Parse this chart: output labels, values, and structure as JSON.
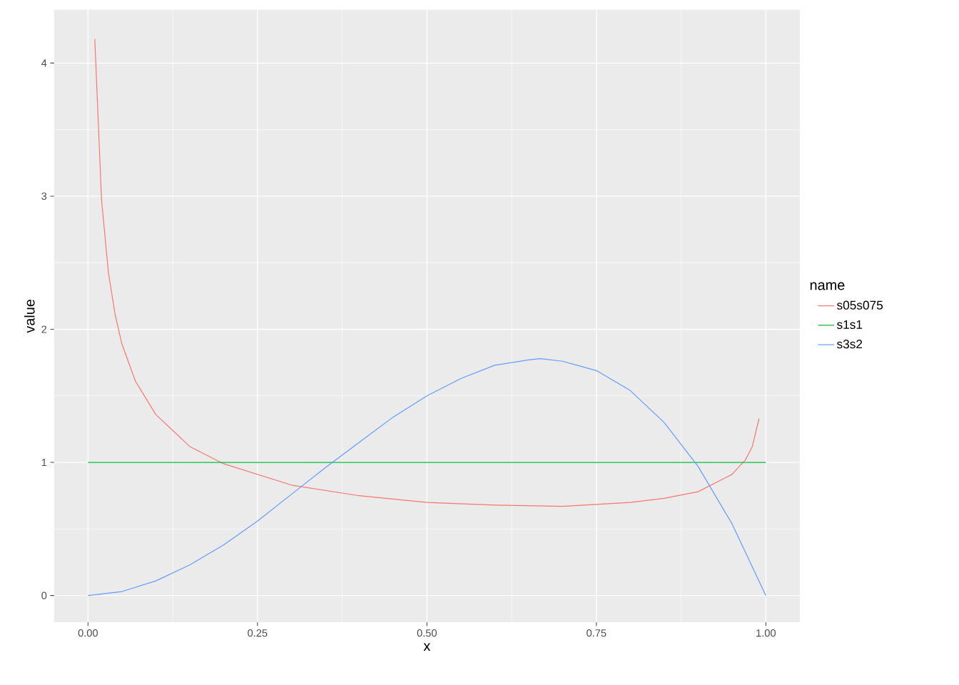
{
  "chart_data": {
    "type": "line",
    "xlabel": "x",
    "ylabel": "value",
    "legend_title": "name",
    "legend": "right",
    "grid": true,
    "xlim": [
      -0.05,
      1.05
    ],
    "ylim": [
      -0.2,
      4.4
    ],
    "xticks": [
      {
        "value": 0,
        "label": "0.00"
      },
      {
        "value": 0.25,
        "label": "0.25"
      },
      {
        "value": 0.5,
        "label": "0.50"
      },
      {
        "value": 0.75,
        "label": "0.75"
      },
      {
        "value": 1,
        "label": "1.00"
      }
    ],
    "yticks": [
      0,
      1,
      2,
      3,
      4
    ],
    "series": [
      {
        "name": "s05s075",
        "color": "#f8766d",
        "x": [
          0.01,
          0.02,
          0.03,
          0.04,
          0.05,
          0.07,
          0.1,
          0.15,
          0.2,
          0.3,
          0.4,
          0.5,
          0.6,
          0.7,
          0.8,
          0.85,
          0.9,
          0.95,
          0.97,
          0.98,
          0.99
        ],
        "values": [
          4.18,
          2.97,
          2.43,
          2.11,
          1.89,
          1.61,
          1.36,
          1.12,
          0.99,
          0.83,
          0.75,
          0.7,
          0.68,
          0.67,
          0.7,
          0.73,
          0.78,
          0.91,
          1.02,
          1.12,
          1.33
        ]
      },
      {
        "name": "s1s1",
        "color": "#00ba38",
        "x": [
          0,
          1
        ],
        "values": [
          1,
          1
        ]
      },
      {
        "name": "s3s2",
        "color": "#619cff",
        "x": [
          0,
          0.05,
          0.1,
          0.15,
          0.2,
          0.25,
          0.3,
          0.35,
          0.4,
          0.45,
          0.5,
          0.55,
          0.6,
          0.65,
          0.667,
          0.7,
          0.75,
          0.8,
          0.85,
          0.9,
          0.95,
          1
        ],
        "values": [
          0,
          0.03,
          0.11,
          0.23,
          0.38,
          0.56,
          0.76,
          0.96,
          1.15,
          1.34,
          1.5,
          1.63,
          1.73,
          1.77,
          1.78,
          1.76,
          1.69,
          1.54,
          1.3,
          0.97,
          0.54,
          0
        ]
      }
    ]
  }
}
